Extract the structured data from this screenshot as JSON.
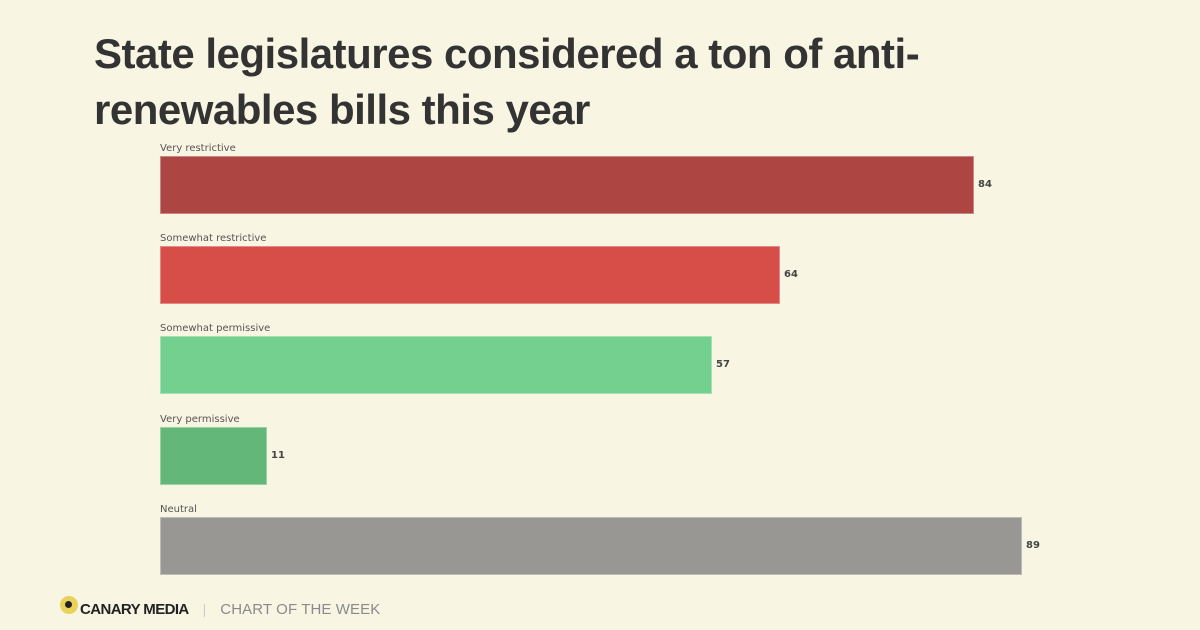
{
  "header": {
    "title": "State legislatures considered a ton of anti-renewables bills this year"
  },
  "footer": {
    "brand": "CANARY MEDIA",
    "separator": "|",
    "section": "CHART OF THE WEEK",
    "logo_icon": "canary-dot-logo"
  },
  "chart_data": {
    "type": "bar",
    "orientation": "horizontal",
    "title": "State legislatures considered a ton of anti-renewables bills this year",
    "xlabel": "",
    "ylabel": "",
    "categories": [
      "Very restrictive",
      "Somewhat restrictive",
      "Somewhat permissive",
      "Very permissive",
      "Neutral"
    ],
    "values": [
      84,
      64,
      57,
      11,
      89
    ],
    "value_labels": [
      "84",
      "64",
      "57",
      "11",
      "89"
    ],
    "colors": [
      "#ad4642",
      "#d74e48",
      "#74d08e",
      "#63b879",
      "#999793"
    ],
    "grid": false,
    "legend": null,
    "xlim": [
      0,
      89
    ]
  },
  "bars": [
    {
      "label": "Very restrictive",
      "value": "84",
      "color": "#ad4642"
    },
    {
      "label": "Somewhat restrictive",
      "value": "64",
      "color": "#d74e48"
    },
    {
      "label": "Somewhat permissive",
      "value": "57",
      "color": "#74d08e"
    },
    {
      "label": "Very permissive",
      "value": "11",
      "color": "#63b879"
    },
    {
      "label": "Neutral",
      "value": "89",
      "color": "#999793"
    }
  ],
  "colors": {
    "background": "#f8f5e3",
    "title": "#333333",
    "brand_yellow": "#ead25a"
  }
}
